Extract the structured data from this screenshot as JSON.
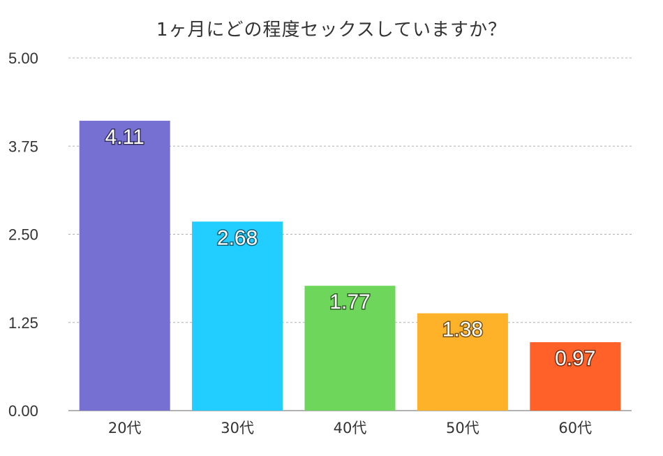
{
  "chart_data": {
    "type": "bar",
    "title": "1ヶ月にどの程度セックスしていますか？",
    "categories": [
      "20代",
      "30代",
      "40代",
      "50代",
      "60代"
    ],
    "values": [
      4.11,
      2.68,
      1.77,
      1.38,
      0.97
    ],
    "data_labels": [
      "4.11",
      "2.68",
      "1.77",
      "1.38",
      "0.97"
    ],
    "bar_colors": [
      "#7570d2",
      "#22ceff",
      "#6fd65c",
      "#fdb22a",
      "#ff6128"
    ],
    "yticks": [
      "5.00",
      "3.75",
      "2.50",
      "1.25",
      "0.00"
    ],
    "ytick_values": [
      5.0,
      3.75,
      2.5,
      1.25,
      0.0
    ],
    "ylim": [
      0,
      5
    ],
    "xlabel": "",
    "ylabel": "",
    "grid": true,
    "legend": "none"
  }
}
